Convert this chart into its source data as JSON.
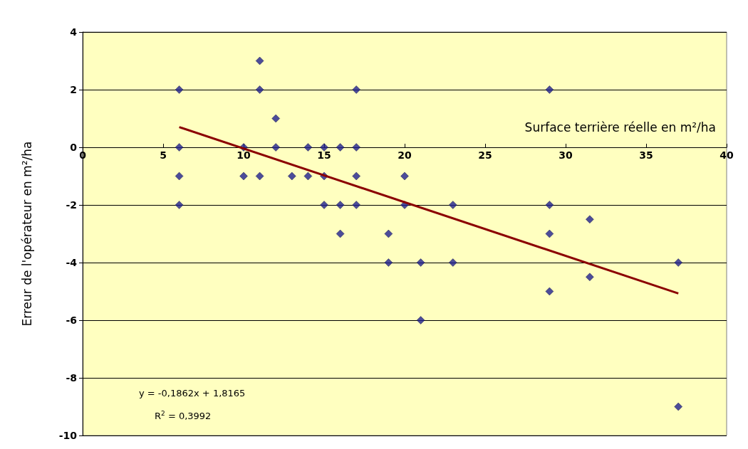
{
  "chart_data": {
    "type": "scatter",
    "xlabel": "Surface terrière réelle en m²/ha",
    "ylabel": "Erreur de l'opérateur en m²/ha",
    "xlim": [
      0,
      40
    ],
    "xticks": [
      0,
      5,
      10,
      15,
      20,
      25,
      30,
      35,
      40
    ],
    "ylim": [
      -10,
      4
    ],
    "yticks": [
      -10,
      -8,
      -6,
      -4,
      -2,
      0,
      2,
      4
    ],
    "grid": "y",
    "marker": "diamond",
    "series": [
      {
        "color": "#1f1f8f",
        "x": [
          6,
          6,
          6,
          6,
          10,
          10,
          11,
          11,
          11,
          12,
          12,
          13,
          14,
          14,
          15,
          15,
          15,
          16,
          16,
          16,
          17,
          17,
          17,
          17,
          19,
          19,
          20,
          20,
          21,
          21,
          23,
          23,
          29,
          29,
          29,
          29,
          31.5,
          31.5,
          37,
          37
        ],
        "values": [
          2,
          0,
          -1,
          -2,
          0,
          -1,
          3,
          2,
          -1,
          1,
          0,
          -1,
          0,
          -1,
          0,
          -1,
          -2,
          0,
          -2,
          -3,
          2,
          0,
          -1,
          -2,
          -3,
          -4,
          -1,
          -2,
          -4,
          -6,
          -2,
          -4,
          2,
          -2,
          -3,
          -5,
          -2.5,
          -4.5,
          -4,
          -9
        ]
      },
      {
        "type": "line",
        "color": "#8b0000",
        "marker": "none",
        "x": [
          6,
          37
        ],
        "values": [
          0.7,
          -5.07
        ]
      }
    ],
    "annotations": [
      "y = -0,1862x + 1,8165",
      "R$^{2}$ = 0,3992"
    ]
  }
}
